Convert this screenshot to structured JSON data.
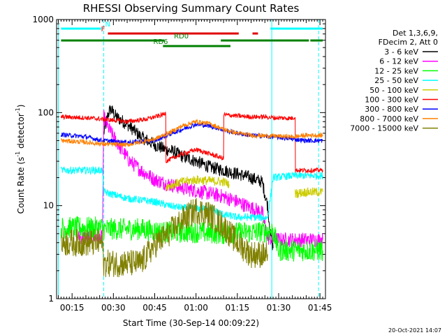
{
  "chart_data": {
    "type": "line",
    "title": "RHESSI Observing Summary Count Rates",
    "xlabel": "Start Time (30-Sep-14 00:09:22)",
    "ylabel_main": "Count Rate (s",
    "ylabel_sup1": "-1",
    "ylabel_mid": " detector",
    "ylabel_sup2": "-1",
    "ylabel_end": ")",
    "yscale": "log",
    "ylim": [
      1,
      1000
    ],
    "xlim": [
      9.37,
      107
    ],
    "y_tick_labels": [
      {
        "v": 1,
        "label": "1"
      },
      {
        "v": 10,
        "label": "10"
      },
      {
        "v": 100,
        "label": "100"
      },
      {
        "v": 1000,
        "label": "1000"
      }
    ],
    "x_tick_labels": [
      {
        "v": 15,
        "label": "00:15"
      },
      {
        "v": 30,
        "label": "00:30"
      },
      {
        "v": 45,
        "label": "00:45"
      },
      {
        "v": 60,
        "label": "01:00"
      },
      {
        "v": 75,
        "label": "01:15"
      },
      {
        "v": 90,
        "label": "01:30"
      },
      {
        "v": 105,
        "label": "01:45"
      }
    ],
    "legend_header": [
      "Det 1,3,6,9,",
      "FDecim 2, Att 0"
    ],
    "legend": [
      {
        "label": "3 - 6 keV",
        "color": "#000000"
      },
      {
        "label": "6 - 12 keV",
        "color": "#ff00ff"
      },
      {
        "label": "12 - 25 keV",
        "color": "#00ff00"
      },
      {
        "label": "25 - 50 keV",
        "color": "#00ffff"
      },
      {
        "label": "50 - 100 keV",
        "color": "#cccc00"
      },
      {
        "label": "100 - 300 keV",
        "color": "#ff0000"
      },
      {
        "label": "300 - 800 keV",
        "color": "#0000ff"
      },
      {
        "label": "800 - 7000 keV",
        "color": "#ff8000"
      },
      {
        "label": "7000 - 15000 keV",
        "color": "#808000"
      }
    ],
    "series": [
      {
        "name": "3 - 6 keV",
        "color": "#000000",
        "noise": 0.07,
        "points": [
          [
            26.5,
            60
          ],
          [
            28,
            95
          ],
          [
            29,
            110
          ],
          [
            31,
            90
          ],
          [
            35,
            75
          ],
          [
            40,
            55
          ],
          [
            45,
            45
          ],
          [
            49,
            40
          ],
          [
            52,
            38
          ],
          [
            55,
            34
          ],
          [
            60,
            30
          ],
          [
            65,
            26
          ],
          [
            70,
            24
          ],
          [
            75,
            22
          ],
          [
            80,
            20
          ],
          [
            84,
            18
          ],
          [
            86,
            10
          ],
          [
            87,
            5
          ],
          [
            88,
            3.5
          ]
        ]
      },
      {
        "name": "6 - 12 keV",
        "color": "#ff00ff",
        "noise": 0.08,
        "points": [
          [
            17,
            4.6
          ],
          [
            26,
            4.6
          ],
          [
            26.5,
            90
          ],
          [
            28,
            70
          ],
          [
            30,
            55
          ],
          [
            33,
            40
          ],
          [
            36,
            30
          ],
          [
            40,
            24
          ],
          [
            45,
            19
          ],
          [
            50,
            17
          ],
          [
            55,
            15.5
          ],
          [
            60,
            14.5
          ],
          [
            65,
            13.5
          ],
          [
            70,
            12.5
          ],
          [
            75,
            11
          ],
          [
            80,
            9.5
          ],
          [
            84,
            8.5
          ],
          [
            86,
            4.5
          ],
          [
            90,
            4.3
          ],
          [
            100,
            4.3
          ],
          [
            106,
            4.3
          ]
        ]
      },
      {
        "name": "12 - 25 keV",
        "color": "#00ff00",
        "noise": 0.12,
        "points": [
          [
            11,
            5.8
          ],
          [
            26,
            5.8
          ],
          [
            26.5,
            5.6
          ],
          [
            40,
            5.6
          ],
          [
            48,
            5.2
          ],
          [
            60,
            5.2
          ],
          [
            70,
            5.0
          ],
          [
            86,
            5.3
          ],
          [
            88,
            5.3
          ],
          [
            90,
            3.3
          ],
          [
            100,
            3.3
          ],
          [
            106,
            3.3
          ]
        ]
      },
      {
        "name": "25 - 50 keV",
        "color": "#00ffff",
        "noise": 0.04,
        "points": [
          [
            11,
            24
          ],
          [
            26,
            24
          ],
          [
            26.5,
            14
          ],
          [
            35,
            12
          ],
          [
            45,
            11
          ],
          [
            50,
            10
          ],
          [
            55,
            9.5
          ],
          [
            60,
            9.2
          ],
          [
            65,
            9.4
          ],
          [
            70,
            8
          ],
          [
            75,
            7.5
          ],
          [
            80,
            7.5
          ],
          [
            86,
            7.4
          ],
          [
            88,
            20
          ],
          [
            95,
            21
          ],
          [
            100,
            21
          ],
          [
            106,
            21
          ]
        ]
      },
      {
        "name": "50 - 100 keV",
        "color": "#cccc00",
        "noise": 0.05,
        "points": [
          [
            49,
            16
          ],
          [
            55,
            18
          ],
          [
            60,
            19
          ],
          [
            65,
            18.5
          ],
          [
            70,
            18
          ],
          [
            72,
            17
          ]
        ]
      },
      {
        "name": "50 - 100 keV (later)",
        "color": "#cccc00",
        "noise": 0.05,
        "points": [
          [
            96,
            13.5
          ],
          [
            100,
            14
          ],
          [
            106,
            14
          ]
        ]
      },
      {
        "name": "100 - 300 keV",
        "color": "#ff0000",
        "noise": 0.025,
        "points": [
          [
            11,
            90
          ],
          [
            20,
            88
          ],
          [
            26,
            85
          ],
          [
            35,
            80
          ],
          [
            42,
            85
          ],
          [
            48,
            95
          ],
          [
            49,
            100
          ],
          [
            49.1,
            30
          ],
          [
            55,
            36
          ],
          [
            60,
            40
          ],
          [
            65,
            36
          ],
          [
            70,
            32
          ],
          [
            70.1,
            95
          ],
          [
            75,
            92
          ],
          [
            80,
            90
          ],
          [
            85,
            90
          ],
          [
            88,
            88
          ],
          [
            95,
            87
          ],
          [
            96,
            90
          ],
          [
            96.1,
            24
          ],
          [
            100,
            24
          ],
          [
            106,
            24
          ]
        ]
      },
      {
        "name": "300 - 800 keV",
        "color": "#0000ff",
        "noise": 0.025,
        "points": [
          [
            11,
            58
          ],
          [
            20,
            55
          ],
          [
            26,
            50
          ],
          [
            35,
            48
          ],
          [
            45,
            50
          ],
          [
            50,
            58
          ],
          [
            55,
            66
          ],
          [
            60,
            75
          ],
          [
            65,
            72
          ],
          [
            70,
            65
          ],
          [
            75,
            60
          ],
          [
            80,
            57
          ],
          [
            88,
            55
          ],
          [
            95,
            52
          ],
          [
            100,
            50
          ],
          [
            106,
            50
          ]
        ]
      },
      {
        "name": "800 - 7000 keV",
        "color": "#ff8000",
        "noise": 0.025,
        "points": [
          [
            11,
            50
          ],
          [
            20,
            48
          ],
          [
            26,
            46
          ],
          [
            35,
            45
          ],
          [
            45,
            52
          ],
          [
            50,
            60
          ],
          [
            55,
            72
          ],
          [
            60,
            80
          ],
          [
            65,
            76
          ],
          [
            70,
            66
          ],
          [
            75,
            60
          ],
          [
            80,
            57
          ],
          [
            88,
            56
          ],
          [
            95,
            55
          ],
          [
            100,
            57
          ],
          [
            106,
            57
          ]
        ]
      },
      {
        "name": "7000 - 15000 keV",
        "color": "#808000",
        "noise": 0.15,
        "points": [
          [
            11,
            4.0
          ],
          [
            26,
            4.0
          ],
          [
            26.5,
            2.4
          ],
          [
            40,
            2.4
          ],
          [
            45,
            3.8
          ],
          [
            50,
            5
          ],
          [
            55,
            7
          ],
          [
            60,
            9
          ],
          [
            65,
            8
          ],
          [
            70,
            6
          ],
          [
            75,
            4
          ],
          [
            80,
            3
          ],
          [
            86,
            3
          ]
        ]
      }
    ],
    "flags": [
      {
        "row": "top",
        "color": "#00ffff",
        "segments": [
          [
            11,
            25.5
          ],
          [
            87,
            106
          ]
        ],
        "labels": [
          {
            "x": 27,
            "text": "N"
          }
        ]
      },
      {
        "row": "mid",
        "color": "#e00000",
        "segments": [
          [
            28,
            75.5
          ],
          [
            80.5,
            82.5
          ]
        ],
        "labels": [
          {
            "x": 25.5,
            "text": "F"
          }
        ]
      },
      {
        "row": "low",
        "color": "#008000",
        "segments": [
          [
            11,
            48.5
          ],
          [
            69,
            101
          ],
          [
            101.5,
            106
          ]
        ],
        "labels": [
          {
            "x": 52,
            "text": "RD0"
          }
        ]
      },
      {
        "row": "lowest",
        "color": "#008000",
        "segments": [
          [
            48,
            72.5
          ]
        ],
        "labels": [
          {
            "x": 44.5,
            "text": "RD6"
          }
        ]
      }
    ],
    "markers": [
      {
        "x": 10.0,
        "color": "#00ffff",
        "style": "solid"
      },
      {
        "x": 26.5,
        "color": "#00ffff",
        "style": "dashed"
      },
      {
        "x": 87.5,
        "color": "#00ffff",
        "style": "solid"
      },
      {
        "x": 104.5,
        "color": "#00ffff",
        "style": "dashed"
      }
    ],
    "timestamp": "20-Oct-2021 14:07"
  }
}
